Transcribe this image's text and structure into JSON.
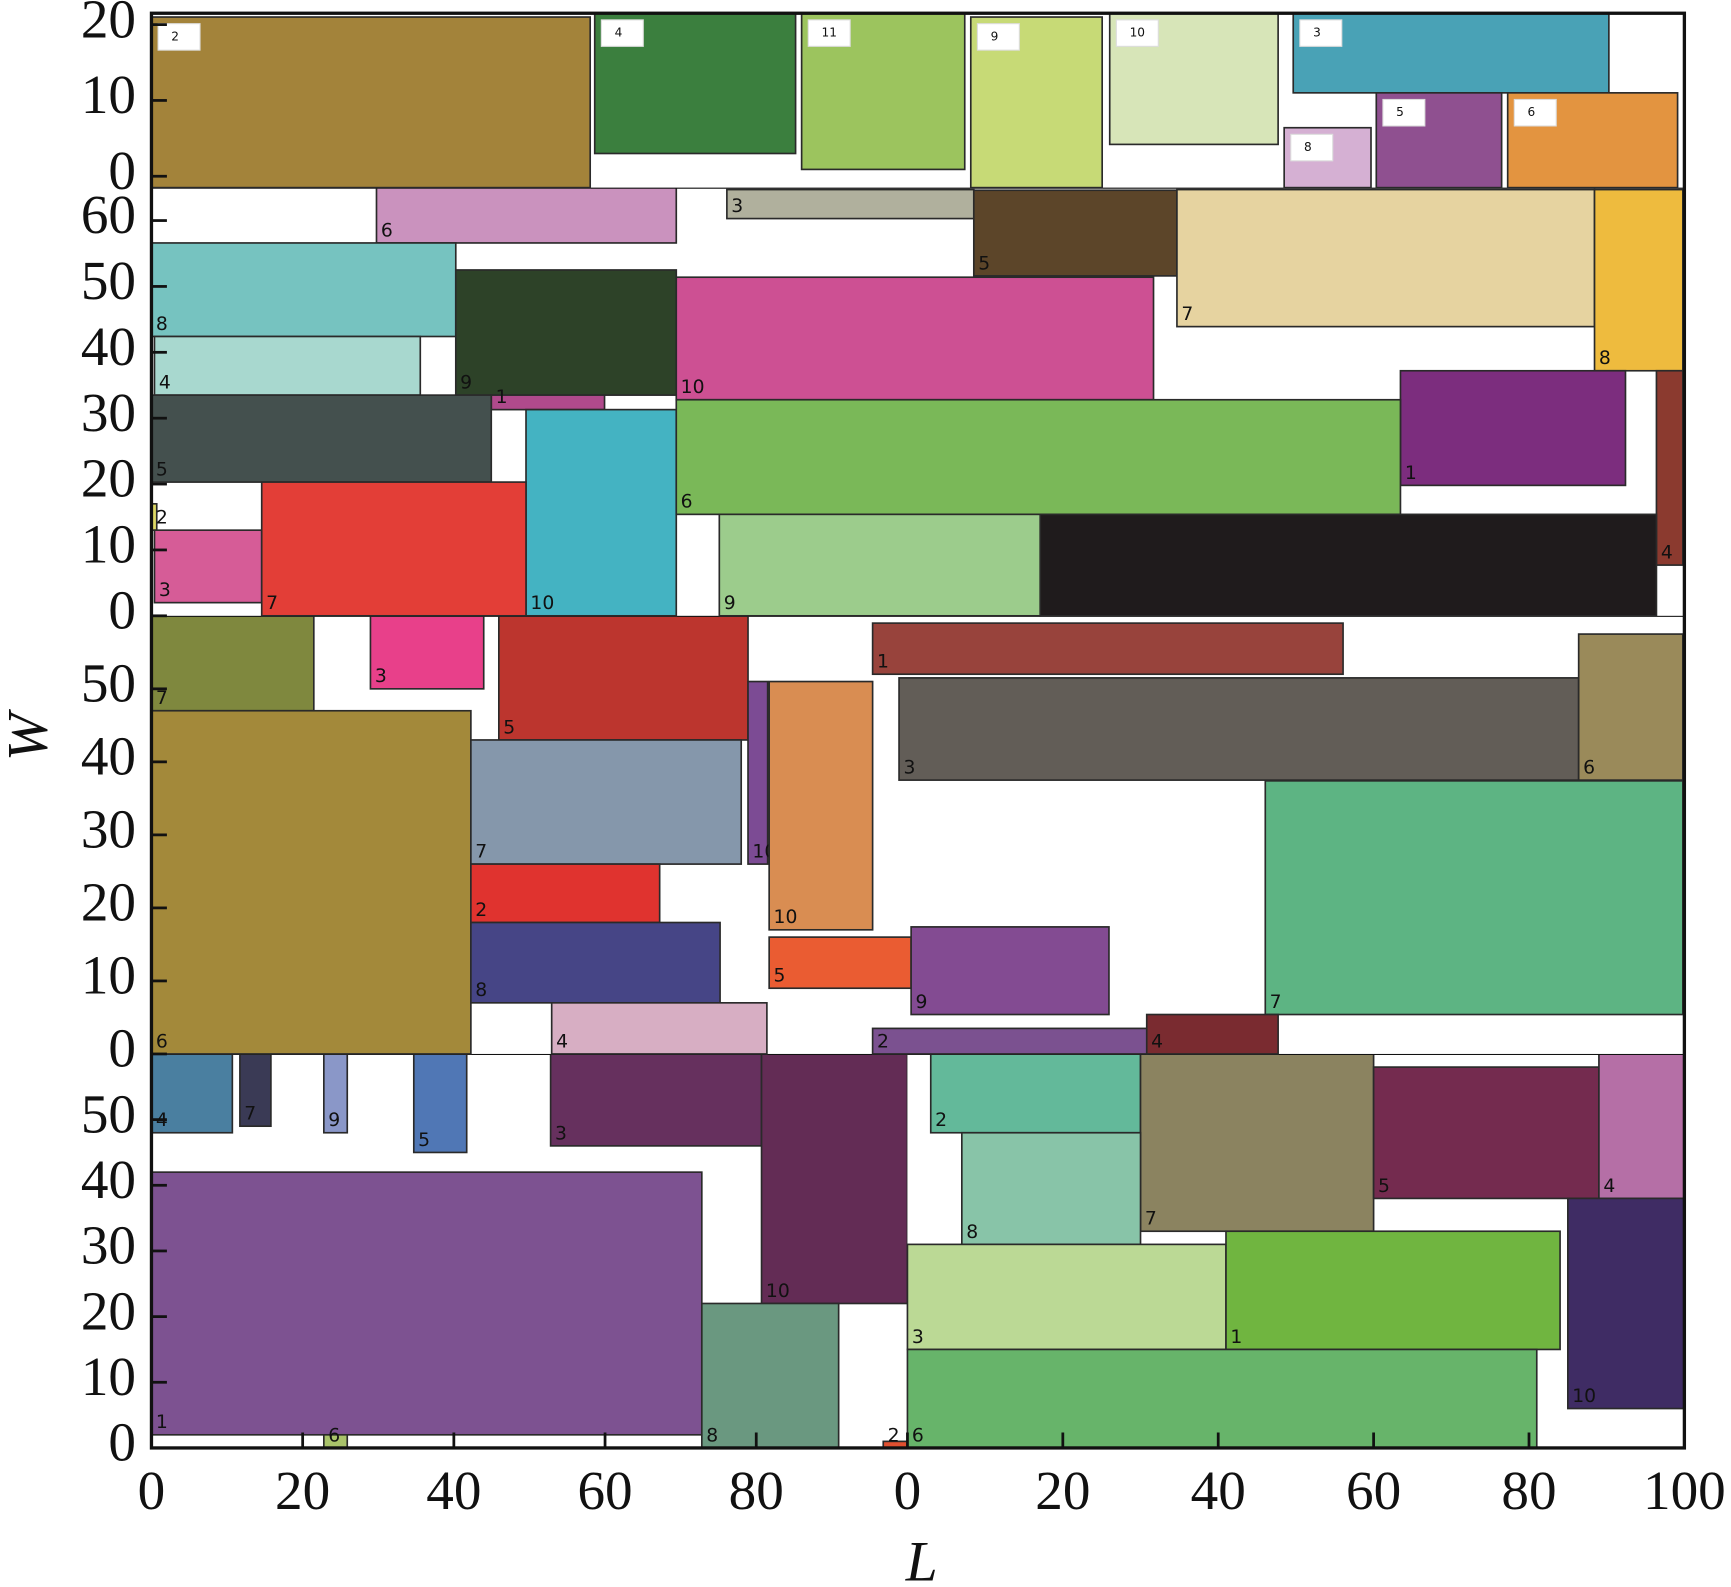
{
  "chart_data": {
    "type": "packing",
    "x_label": "L",
    "y_label": "W",
    "panels": [
      {
        "xlim": [
          0,
          100
        ],
        "ylim": [
          0,
          60
        ],
        "yticks": [
          0,
          10,
          20,
          30,
          40,
          50
        ],
        "xticks": [
          0,
          20,
          40,
          60,
          80
        ],
        "rects": [
          {
            "label": 4,
            "color": "#4a7fa0",
            "x0": 0,
            "width": 10.7,
            "y0": 48,
            "height": 12
          },
          {
            "label": 7,
            "color": "#3a3a55",
            "x0": 11.7,
            "width": 4.1,
            "y0": 49,
            "height": 11
          },
          {
            "label": 9,
            "color": "#8a97c8",
            "x0": 22.8,
            "width": 3.1,
            "y0": 48,
            "height": 12
          },
          {
            "label": 5,
            "color": "#5077b5",
            "x0": 34.7,
            "width": 7,
            "y0": 45,
            "height": 15
          },
          {
            "label": 3,
            "color": "#66305e",
            "x0": 52.8,
            "width": 27.9,
            "y0": 46,
            "height": 14
          },
          {
            "label": 10,
            "color": "#632c55",
            "x0": 80.7,
            "width": 19.3,
            "y0": 22,
            "height": 38
          },
          {
            "label": 1,
            "color": "#7d5291",
            "x0": 0,
            "width": 72.8,
            "y0": 2,
            "height": 40
          },
          {
            "label": 8,
            "color": "#6a9880",
            "x0": 72.8,
            "width": 18.1,
            "y0": 0,
            "height": 22
          },
          {
            "label": 6,
            "color": "#a9c36a",
            "x0": 22.8,
            "width": 3.1,
            "y0": 0,
            "height": 2
          },
          {
            "label": 2,
            "color": "#e05030",
            "x0": 96.8,
            "width": 3.2,
            "y0": 0,
            "height": 1
          }
        ]
      },
      {
        "xlim": [
          0,
          100
        ],
        "ylim": [
          0,
          60
        ],
        "xticks": [
          0,
          20,
          40,
          60,
          80,
          100
        ],
        "rects": [
          {
            "label": 2,
            "color": "#63b99a",
            "x0": 3,
            "width": 27,
            "y0": 48,
            "height": 12
          },
          {
            "label": 7,
            "color": "#8b8360",
            "x0": 30,
            "width": 30,
            "y0": 33,
            "height": 27
          },
          {
            "label": 5,
            "color": "#742b4f",
            "x0": 60,
            "width": 29,
            "y0": 38,
            "height": 20
          },
          {
            "label": 4,
            "color": "#b56fa6",
            "x0": 89,
            "width": 11,
            "y0": 38,
            "height": 22
          },
          {
            "label": 8,
            "color": "#88c4a8",
            "x0": 7,
            "width": 23,
            "y0": 31,
            "height": 17
          },
          {
            "label": 10,
            "color": "#3f2c64",
            "x0": 85,
            "width": 15,
            "y0": 6,
            "height": 32
          },
          {
            "label": 3,
            "color": "#bbd995",
            "x0": 0,
            "width": 41,
            "y0": 15,
            "height": 16
          },
          {
            "label": 1,
            "color": "#70b540",
            "x0": 41,
            "width": 43,
            "y0": 15,
            "height": 18
          },
          {
            "label": 6,
            "color": "#67b46a",
            "x0": 0,
            "width": 81,
            "y0": 0,
            "height": 15
          }
        ]
      },
      {
        "xlim": [
          0,
          203
        ],
        "ylim": [
          0,
          60
        ],
        "yticks": [
          0,
          10,
          20,
          30,
          40,
          50
        ],
        "rects": [
          {
            "label": 7,
            "color": "#7f883e",
            "x0": 0,
            "width": 21.5,
            "y0": 47,
            "height": 13
          },
          {
            "label": 3,
            "color": "#e8408a",
            "x0": 29,
            "width": 15,
            "y0": 50,
            "height": 10
          },
          {
            "label": 5,
            "color": "#bc352e",
            "x0": 46,
            "width": 33,
            "y0": 43,
            "height": 17
          },
          {
            "label": 10,
            "color": "#7c4b94",
            "x0": 79,
            "width": 2.6,
            "y0": 26,
            "height": 25
          },
          {
            "label": 6,
            "color": "#a3893a",
            "x0": 0,
            "width": 42.3,
            "y0": 0,
            "height": 47
          },
          {
            "label": 7,
            "color": "#8597ab",
            "x0": 42.3,
            "width": 35.8,
            "y0": 26,
            "height": 17
          },
          {
            "label": 2,
            "color": "#e0332f",
            "x0": 42.3,
            "width": 25,
            "y0": 18,
            "height": 8
          },
          {
            "label": 8,
            "color": "#464586",
            "x0": 42.3,
            "width": 33,
            "y0": 7,
            "height": 11
          },
          {
            "label": 4,
            "color": "#d7aec3",
            "x0": 53,
            "width": 28.5,
            "y0": 0,
            "height": 7
          },
          {
            "label": 10,
            "color": "#d98d52",
            "x0": 81.8,
            "width": 13.7,
            "y0": 17,
            "height": 34
          },
          {
            "label": 5,
            "color": "#ea5c32",
            "x0": 81.8,
            "width": 18.8,
            "y0": 9,
            "height": 7
          },
          {
            "label": 1,
            "color": "#98433c",
            "x0": 95.5,
            "width": 62.3,
            "y0": 52,
            "height": 7
          },
          {
            "label": 3,
            "color": "#625d57",
            "x0": 99,
            "width": 90,
            "y0": 37.5,
            "height": 14
          },
          {
            "label": 6,
            "color": "#9a8a5a",
            "x0": 189,
            "width": 13.8,
            "y0": 37.5,
            "height": 20
          },
          {
            "label": 7,
            "color": "#5db483",
            "x0": 147.5,
            "width": 55.3,
            "y0": 5.4,
            "height": 32
          },
          {
            "label": 9,
            "color": "#834b92",
            "x0": 100.6,
            "width": 26.2,
            "y0": 5.4,
            "height": 12
          },
          {
            "label": 2,
            "color": "#7b5190",
            "x0": 95.5,
            "width": 36.4,
            "y0": 0,
            "height": 3.5
          },
          {
            "label": 4,
            "color": "#7a2b30",
            "x0": 131.8,
            "width": 17.4,
            "y0": 0,
            "height": 5.4
          }
        ]
      },
      {
        "xlim": [
          0,
          203
        ],
        "ylim": [
          0,
          65
        ],
        "yticks": [
          0,
          10,
          20,
          30,
          40,
          50,
          60
        ],
        "rects": [
          {
            "label": 6,
            "color": "#ca92be",
            "x0": 29.8,
            "width": 39.7,
            "y0": 56.6,
            "height": 8.4
          },
          {
            "label": 8,
            "color": "#76c3c0",
            "x0": 0,
            "width": 40.3,
            "y0": 42.4,
            "height": 14.2
          },
          {
            "label": 9,
            "color": "#2d4228",
            "x0": 40.3,
            "width": 29.2,
            "y0": 33.5,
            "height": 19
          },
          {
            "label": 4,
            "color": "#a8d8cf",
            "x0": 0.4,
            "width": 35.2,
            "y0": 33.5,
            "height": 8.9
          },
          {
            "label": 1,
            "color": "#b04a8c",
            "x0": 45,
            "width": 15,
            "y0": 31.3,
            "height": 2.2
          },
          {
            "label": 5,
            "color": "#44504e",
            "x0": 0,
            "width": 45,
            "y0": 20.3,
            "height": 13.2
          },
          {
            "label": 10,
            "color": "#44b3c2",
            "x0": 49.6,
            "width": 19.9,
            "y0": 0,
            "height": 31.3
          },
          {
            "label": 2,
            "color": "#ddd866",
            "x0": 0,
            "width": 0.7,
            "y0": 13,
            "height": 4
          },
          {
            "label": 3,
            "color": "#d65c97",
            "x0": 0.4,
            "width": 14.2,
            "y0": 2,
            "height": 11
          },
          {
            "label": 7,
            "color": "#e33e37",
            "x0": 14.6,
            "width": 35,
            "y0": 0,
            "height": 20.3
          },
          {
            "label": 3,
            "color": "#b0b09d",
            "x0": 76.2,
            "width": 32.7,
            "y0": 60.3,
            "height": 4.4
          },
          {
            "label": 5,
            "color": "#5c4529",
            "x0": 108.9,
            "width": 26.9,
            "y0": 51.6,
            "height": 13
          },
          {
            "label": 7,
            "color": "#e6d3a0",
            "x0": 135.8,
            "width": 55.3,
            "y0": 43.9,
            "height": 20.8
          },
          {
            "label": 8,
            "color": "#eebb3e",
            "x0": 191.1,
            "width": 11.7,
            "y0": 37.2,
            "height": 27.5
          },
          {
            "label": 10,
            "color": "#cd5093",
            "x0": 69.5,
            "width": 63.2,
            "y0": 32.8,
            "height": 18.6
          },
          {
            "label": 1,
            "color": "#7c2d7e",
            "x0": 165.4,
            "width": 29.8,
            "y0": 19.8,
            "height": 17.4
          },
          {
            "label": 4,
            "color": "#8b3a2f",
            "x0": 199.3,
            "width": 3.5,
            "y0": 7.7,
            "height": 29.5
          },
          {
            "label": 6,
            "color": "#7ab858",
            "x0": 69.5,
            "width": 95.9,
            "y0": 15.4,
            "height": 17.4
          },
          {
            "label": 9,
            "color": "#9ccc8c",
            "x0": 75.2,
            "width": 42.5,
            "y0": 0,
            "height": 15.4
          },
          {
            "color": "#1f1b1c",
            "x0": 117.7,
            "width": 81.6,
            "y0": 0,
            "height": 15.4
          }
        ]
      },
      {
        "xlim": [
          0,
          203
        ],
        "ylim": [
          -1.5,
          21.5
        ],
        "yticks": [
          0,
          10,
          20
        ],
        "label_box": true,
        "rects": [
          {
            "label": 2,
            "color": "#a3833a",
            "x0": 0,
            "width": 58.1,
            "y0": -1.5,
            "height": 22.5
          },
          {
            "label": 4,
            "color": "#3b7f3e",
            "x0": 58.7,
            "width": 26.6,
            "y0": 3,
            "height": 18.5
          },
          {
            "label": 11,
            "color": "#9cc45e",
            "x0": 86.1,
            "width": 21.6,
            "y0": 0.9,
            "height": 20.6
          },
          {
            "label": 9,
            "color": "#c7da76",
            "x0": 108.5,
            "width": 17.4,
            "y0": -1.5,
            "height": 22.5
          },
          {
            "label": 10,
            "color": "#d7e5b8",
            "x0": 126.9,
            "width": 22.3,
            "y0": 4.2,
            "height": 17.3
          },
          {
            "label": 3,
            "color": "#49a2b6",
            "x0": 151.2,
            "width": 41.8,
            "y0": 11,
            "height": 10.5
          },
          {
            "label": 8,
            "color": "#d5b0d3",
            "x0": 150,
            "width": 11.5,
            "y0": -1.5,
            "height": 7.9
          },
          {
            "label": 5,
            "color": "#8f5090",
            "x0": 162.2,
            "width": 16.6,
            "y0": -1.5,
            "height": 12.5
          },
          {
            "label": 6,
            "color": "#e39440",
            "x0": 179.6,
            "width": 22.5,
            "y0": -1.5,
            "height": 12.5
          }
        ]
      }
    ]
  }
}
